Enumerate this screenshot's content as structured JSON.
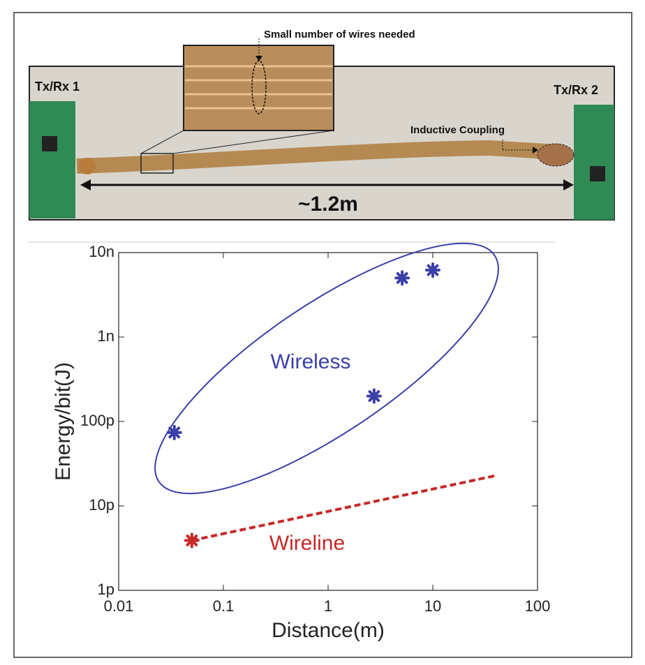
{
  "photo": {
    "annotations": {
      "zoom": "Small number of wires needed",
      "left_board": "Tx/Rx 1",
      "right_board": "Tx/Rx 2",
      "coupling": "Inductive Coupling",
      "length": "~1.2m"
    }
  },
  "chart_data": {
    "type": "scatter",
    "x_label": "Distance(m)",
    "y_label": "Energy/bit(J)",
    "x_log": true,
    "y_log": true,
    "xlim": [
      0.01,
      100
    ],
    "xticks": [
      0.01,
      0.1,
      1,
      10,
      100
    ],
    "ylim": [
      1e-12,
      1e-08
    ],
    "yticks": [
      {
        "value": 1e-12,
        "label": "1p"
      },
      {
        "value": 1e-11,
        "label": "10p"
      },
      {
        "value": 1e-10,
        "label": "100p"
      },
      {
        "value": 1e-09,
        "label": "1n"
      },
      {
        "value": 1e-08,
        "label": "10n"
      }
    ],
    "series": [
      {
        "name": "Wireless",
        "color": "#3b3fa8",
        "x": [
          0.034,
          2.75,
          5.1,
          10
        ],
        "values": [
          7.4e-11,
          2e-10,
          5e-09,
          6.2e-09
        ]
      },
      {
        "name": "Wireline",
        "color": "#c62828",
        "x": [
          0.05
        ],
        "values": [
          3.9e-12
        ]
      }
    ],
    "trend_line": {
      "color": "#c62828",
      "dashed": true,
      "x": [
        0.05,
        41
      ],
      "values": [
        3.9e-12,
        2.3e-11
      ]
    }
  }
}
